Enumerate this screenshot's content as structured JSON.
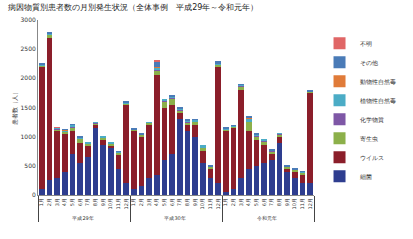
{
  "chart_data": {
    "type": "bar",
    "title": "病因物質別患者数の月別発生状況（全体事例　平成29年～令和元年）",
    "y_label": "患者数（人）",
    "stacked": true,
    "grid": false,
    "legend": "right",
    "categories": [
      "1月",
      "2月",
      "3月",
      "4月",
      "5月",
      "6月",
      "7月",
      "8月",
      "9月",
      "10月",
      "11月",
      "12月",
      "1月",
      "2月",
      "3月",
      "4月",
      "5月",
      "6月",
      "7月",
      "8月",
      "9月",
      "10月",
      "11月",
      "12月",
      "1月",
      "2月",
      "3月",
      "4月",
      "5月",
      "6月",
      "7月",
      "8月",
      "9月",
      "10月",
      "11月",
      "12月"
    ],
    "groups": [
      "平成29年",
      "平成30年",
      "令和元年"
    ],
    "ylim": [
      0,
      3000
    ],
    "yticks": [
      0,
      500,
      1000,
      1500,
      2000,
      2500,
      3000
    ],
    "series": [
      {
        "name": "細菌",
        "color": "#2e3d8f",
        "values": [
          100,
          250,
          300,
          400,
          700,
          550,
          650,
          1150,
          850,
          800,
          450,
          200,
          100,
          150,
          300,
          350,
          600,
          700,
          1300,
          1100,
          1000,
          550,
          300,
          200,
          50,
          100,
          300,
          450,
          500,
          550,
          600,
          900,
          400,
          300,
          200,
          200
        ]
      },
      {
        "name": "ウイルス",
        "color": "#8b1e2a",
        "values": [
          2100,
          2450,
          800,
          650,
          400,
          350,
          200,
          50,
          100,
          50,
          250,
          1350,
          1000,
          850,
          900,
          1700,
          900,
          850,
          100,
          100,
          200,
          200,
          150,
          2000,
          1050,
          1050,
          1500,
          650,
          450,
          300,
          100,
          100,
          50,
          100,
          150,
          1550
        ]
      },
      {
        "name": "寄生虫",
        "color": "#8cb04a",
        "values": [
          20,
          50,
          30,
          40,
          60,
          60,
          30,
          30,
          30,
          30,
          30,
          20,
          20,
          30,
          40,
          80,
          100,
          100,
          50,
          50,
          60,
          60,
          30,
          40,
          30,
          30,
          60,
          150,
          60,
          60,
          50,
          40,
          30,
          30,
          40,
          20
        ]
      },
      {
        "name": "化学物質",
        "color": "#7e57a6",
        "values": [
          0,
          0,
          10,
          0,
          20,
          10,
          10,
          10,
          10,
          0,
          0,
          0,
          0,
          0,
          0,
          20,
          10,
          20,
          10,
          10,
          0,
          10,
          0,
          0,
          0,
          0,
          10,
          0,
          10,
          20,
          10,
          10,
          0,
          0,
          0,
          0
        ]
      },
      {
        "name": "植物性自然毒",
        "color": "#4bacc6",
        "values": [
          10,
          10,
          10,
          20,
          20,
          20,
          10,
          10,
          10,
          20,
          10,
          10,
          10,
          10,
          10,
          30,
          40,
          20,
          20,
          20,
          30,
          30,
          10,
          10,
          10,
          10,
          20,
          60,
          20,
          20,
          10,
          10,
          10,
          10,
          10,
          10
        ]
      },
      {
        "name": "動物性自然毒",
        "color": "#e07b39",
        "values": [
          0,
          0,
          0,
          10,
          0,
          0,
          0,
          0,
          0,
          0,
          0,
          0,
          0,
          0,
          0,
          10,
          0,
          0,
          0,
          0,
          0,
          0,
          0,
          0,
          0,
          0,
          0,
          10,
          0,
          0,
          0,
          0,
          0,
          0,
          0,
          0
        ]
      },
      {
        "name": "その他",
        "color": "#4a7bb7",
        "values": [
          20,
          20,
          0,
          10,
          10,
          10,
          0,
          0,
          0,
          0,
          10,
          20,
          20,
          10,
          0,
          100,
          0,
          10,
          20,
          20,
          10,
          0,
          10,
          50,
          10,
          10,
          10,
          30,
          10,
          0,
          10,
          0,
          10,
          10,
          10,
          20
        ]
      },
      {
        "name": "不明",
        "color": "#e06666",
        "values": [
          0,
          0,
          10,
          0,
          0,
          0,
          0,
          0,
          0,
          0,
          0,
          0,
          0,
          0,
          0,
          10,
          0,
          0,
          0,
          0,
          0,
          0,
          0,
          0,
          0,
          0,
          0,
          0,
          0,
          0,
          0,
          0,
          0,
          0,
          0,
          0
        ]
      }
    ]
  }
}
